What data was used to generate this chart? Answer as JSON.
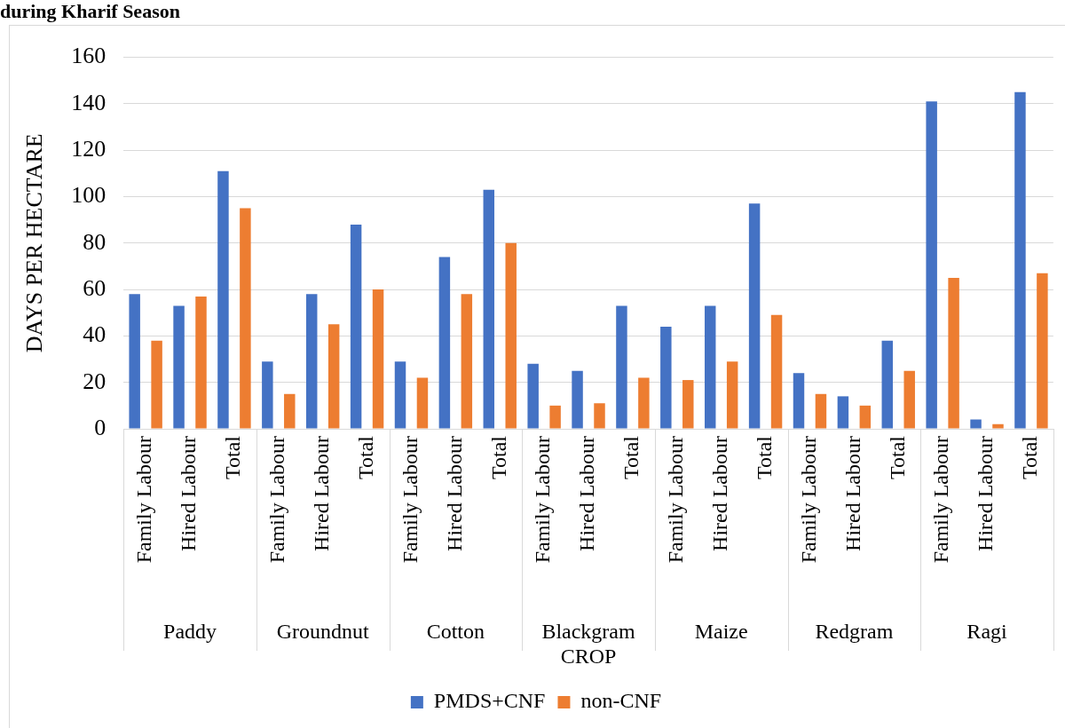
{
  "chart_data": {
    "type": "bar",
    "title": "during Kharif Season",
    "xlabel": "CROP",
    "ylabel": "DAYS PER HECTARE",
    "categories": [
      "Family Labour",
      "Hired Labour",
      "Total",
      "Family Labour",
      "Hired Labour",
      "Total",
      "Family Labour",
      "Hired Labour",
      "Total",
      "Family Labour",
      "Hired Labour",
      "Total",
      "Family Labour",
      "Hired Labour",
      "Total",
      "Family Labour",
      "Hired Labour",
      "Total",
      "Family Labour",
      "Hired Labour",
      "Total"
    ],
    "annotations": [
      "Paddy",
      "Groundnut",
      "Cotton",
      "Blackgram",
      "Maize",
      "Redgram",
      "Ragi"
    ],
    "series": [
      {
        "name": "PMDS+CNF",
        "color": "#4472c4",
        "values": [
          58,
          53,
          111,
          29,
          58,
          88,
          29,
          74,
          103,
          28,
          25,
          53,
          44,
          53,
          97,
          24,
          14,
          38,
          141,
          4,
          145
        ]
      },
      {
        "name": "non-CNF",
        "color": "#ed7d31",
        "values": [
          38,
          57,
          95,
          15,
          45,
          60,
          22,
          58,
          80,
          10,
          11,
          22,
          21,
          29,
          49,
          15,
          10,
          25,
          65,
          2,
          67
        ]
      }
    ],
    "ylim": [
      0,
      160
    ],
    "yticks": [
      0,
      20,
      40,
      60,
      80,
      100,
      120,
      140,
      160
    ],
    "grid": "y",
    "legend": "bottom"
  }
}
